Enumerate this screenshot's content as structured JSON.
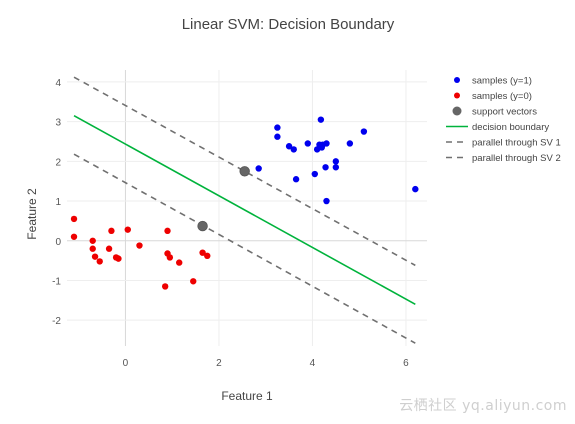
{
  "chart_data": {
    "type": "scatter",
    "title": "Linear SVM: Decision Boundary",
    "xlabel": "Feature 1",
    "ylabel": "Feature 2",
    "xlim": [
      -1.25,
      6.45
    ],
    "ylim": [
      -2.65,
      4.3
    ],
    "xticks": [
      0,
      2,
      4,
      6
    ],
    "yticks": [
      -2,
      -1,
      0,
      1,
      2,
      3,
      4
    ],
    "grid": true,
    "legend_position": "top-right",
    "series": [
      {
        "name": "samples (y=1)",
        "kind": "markers",
        "color": "#0000ee",
        "x": [
          3.25,
          3.25,
          3.5,
          3.6,
          3.65,
          3.9,
          4.05,
          4.1,
          4.15,
          4.18,
          4.2,
          4.22,
          4.28,
          4.3,
          4.5,
          4.5,
          4.8,
          5.1,
          2.85,
          4.3,
          6.2
        ],
        "y": [
          2.85,
          2.62,
          2.38,
          2.3,
          1.55,
          2.45,
          1.68,
          2.3,
          2.42,
          3.05,
          2.35,
          2.42,
          1.85,
          1.0,
          2.0,
          1.85,
          2.45,
          2.75,
          1.82,
          2.45,
          1.3
        ]
      },
      {
        "name": "samples (y=0)",
        "kind": "markers",
        "color": "#ee0000",
        "x": [
          -1.1,
          -1.1,
          -0.7,
          -0.7,
          -0.65,
          -0.55,
          -0.35,
          -0.3,
          -0.2,
          -0.15,
          0.05,
          0.3,
          0.9,
          0.9,
          0.95,
          0.85,
          1.15,
          1.45,
          1.65,
          1.75
        ],
        "y": [
          0.55,
          0.1,
          0.0,
          -0.2,
          -0.4,
          -0.52,
          -0.2,
          0.25,
          -0.42,
          -0.45,
          0.28,
          -0.12,
          0.25,
          -0.32,
          -0.42,
          -1.15,
          -0.55,
          -1.02,
          -0.3,
          -0.38
        ]
      },
      {
        "name": "support vectors",
        "kind": "support",
        "color": "#666666",
        "x": [
          2.55,
          1.65
        ],
        "y": [
          1.75,
          0.37
        ]
      },
      {
        "name": "decision boundary",
        "kind": "line",
        "color": "#00b33c",
        "dash": "solid",
        "x": [
          -1.1,
          6.2
        ],
        "y": [
          3.15,
          -1.6
        ]
      },
      {
        "name": "parallel through SV 1",
        "kind": "line",
        "color": "#707070",
        "dash": "dash",
        "x": [
          -1.1,
          6.2
        ],
        "y": [
          4.12,
          -0.62
        ]
      },
      {
        "name": "parallel through SV 2",
        "kind": "line",
        "color": "#707070",
        "dash": "dash",
        "x": [
          -1.1,
          6.2
        ],
        "y": [
          2.18,
          -2.58
        ]
      }
    ]
  },
  "watermark": "云栖社区 yq.aliyun.com"
}
